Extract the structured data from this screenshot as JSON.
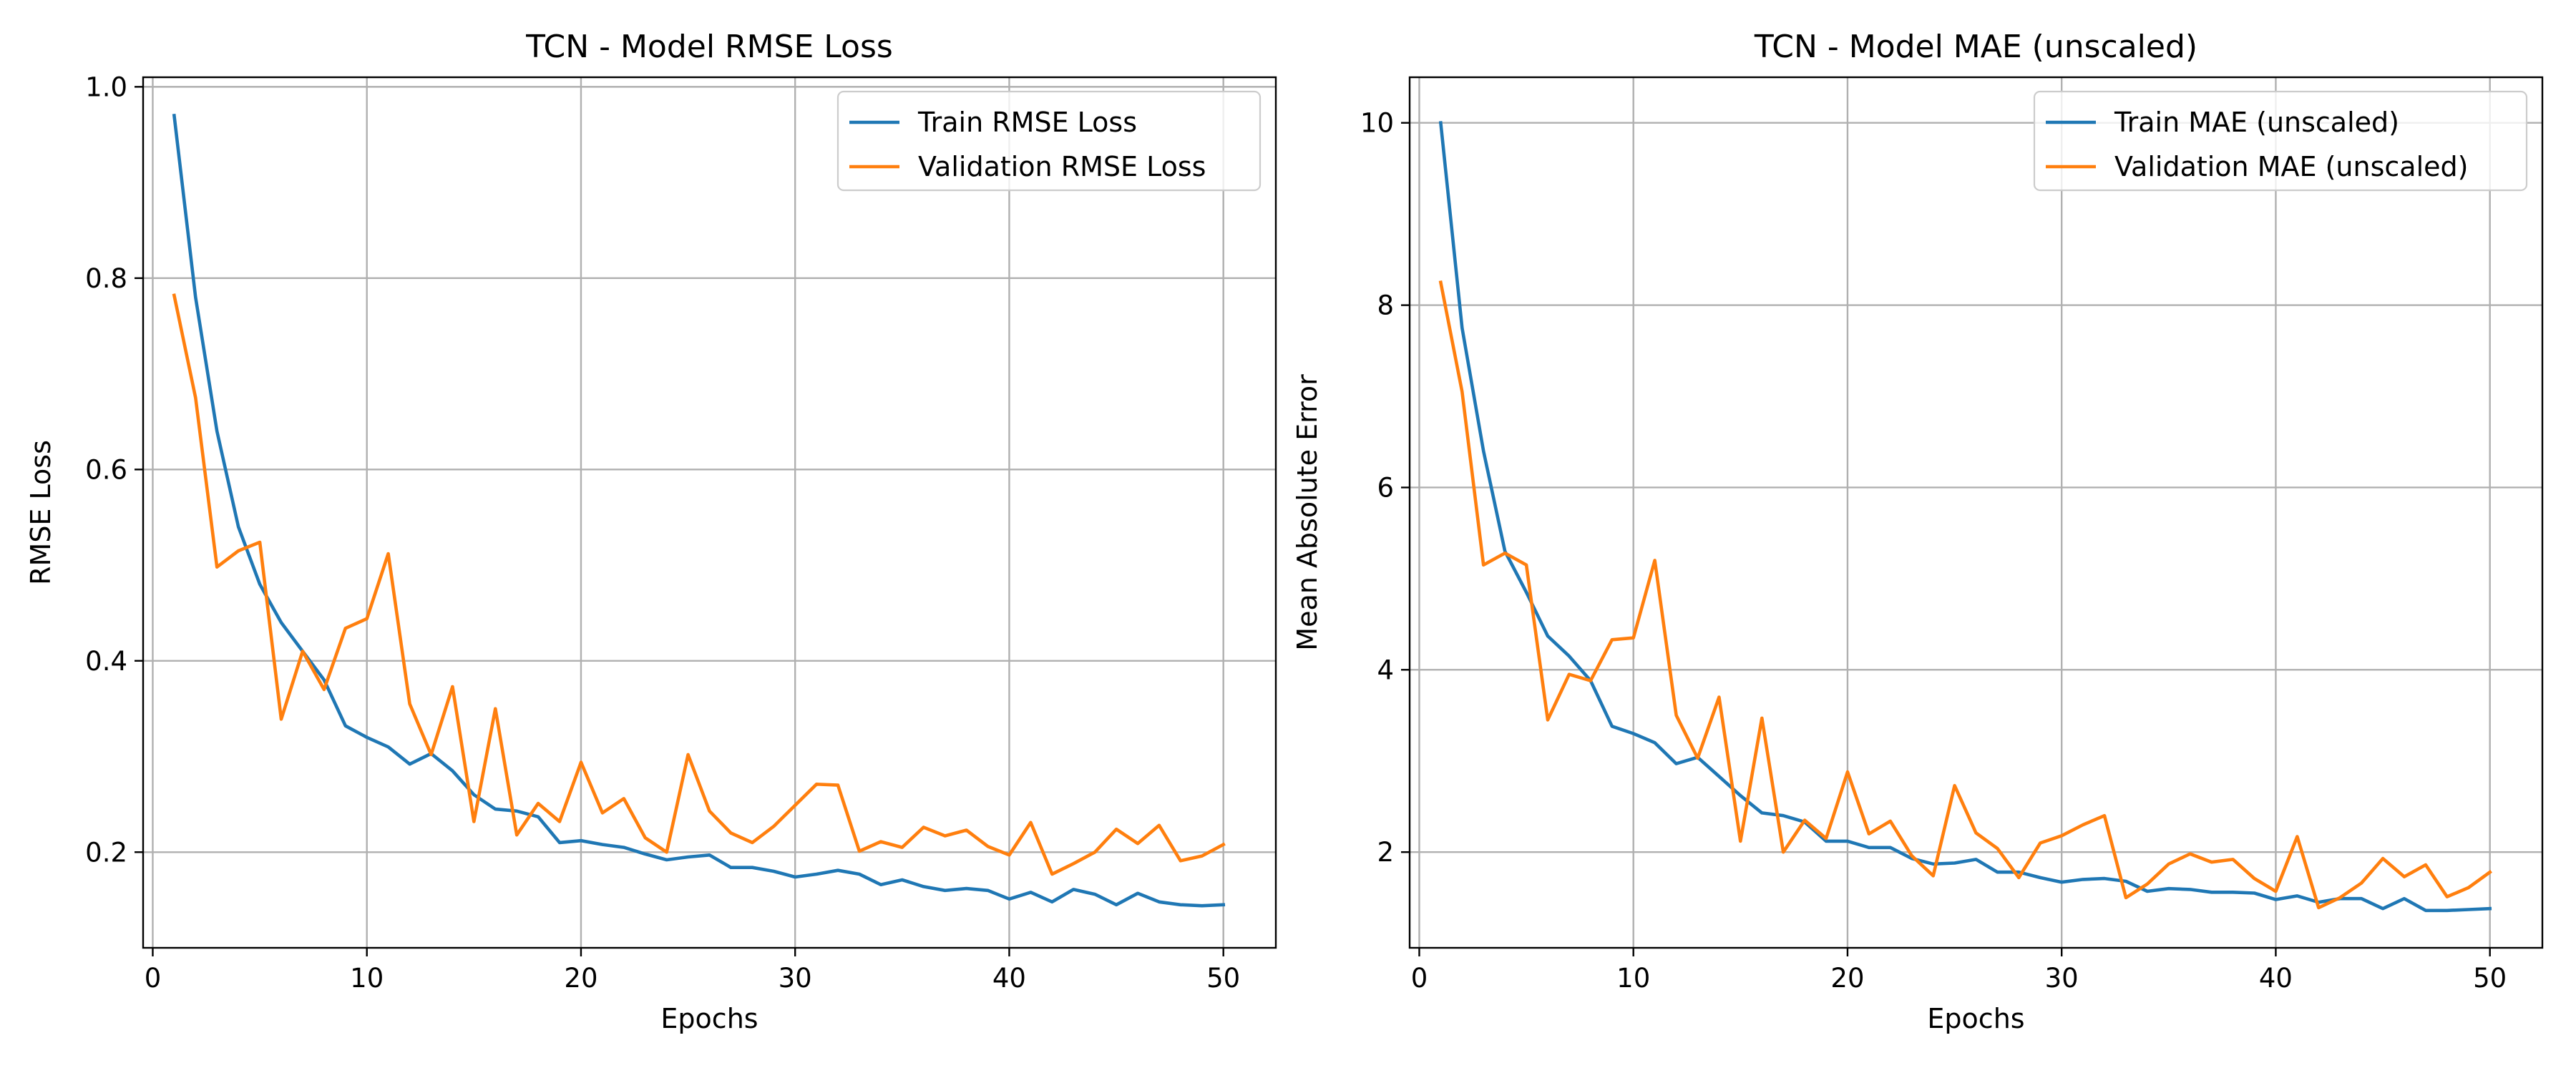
{
  "chart_data": [
    {
      "type": "line",
      "title": "TCN - Model RMSE Loss",
      "xlabel": "Epochs",
      "ylabel": "RMSE Loss",
      "xlim": [
        -0.45,
        52.45
      ],
      "ylim": [
        0.1,
        1.01
      ],
      "xticks": [
        0,
        10,
        20,
        30,
        40,
        50
      ],
      "yticks": [
        0.2,
        0.4,
        0.6,
        0.8,
        1.0
      ],
      "ytick_labels": [
        "0.2",
        "0.4",
        "0.6",
        "0.8",
        "1.0"
      ],
      "grid": true,
      "legend_position": "top-right",
      "x": [
        1,
        2,
        3,
        4,
        5,
        6,
        7,
        8,
        9,
        10,
        11,
        12,
        13,
        14,
        15,
        16,
        17,
        18,
        19,
        20,
        21,
        22,
        23,
        24,
        25,
        26,
        27,
        28,
        29,
        30,
        31,
        32,
        33,
        34,
        35,
        36,
        37,
        38,
        39,
        40,
        41,
        42,
        43,
        44,
        45,
        46,
        47,
        48,
        49,
        50
      ],
      "series": [
        {
          "name": "Train RMSE Loss",
          "color": "#1f77b4",
          "values": [
            0.97,
            0.78,
            0.64,
            0.54,
            0.48,
            0.44,
            0.41,
            0.38,
            0.332,
            0.32,
            0.31,
            0.292,
            0.303,
            0.285,
            0.26,
            0.245,
            0.243,
            0.237,
            0.21,
            0.212,
            0.208,
            0.205,
            0.198,
            0.192,
            0.195,
            0.197,
            0.184,
            0.184,
            0.18,
            0.174,
            0.177,
            0.181,
            0.177,
            0.166,
            0.171,
            0.164,
            0.16,
            0.162,
            0.16,
            0.151,
            0.158,
            0.148,
            0.161,
            0.156,
            0.145,
            0.157,
            0.148,
            0.145,
            0.144,
            0.145
          ]
        },
        {
          "name": "Validation RMSE Loss",
          "color": "#ff7f0e",
          "values": [
            0.782,
            0.675,
            0.498,
            0.515,
            0.524,
            0.339,
            0.41,
            0.37,
            0.434,
            0.444,
            0.512,
            0.355,
            0.302,
            0.373,
            0.232,
            0.35,
            0.218,
            0.251,
            0.232,
            0.294,
            0.241,
            0.256,
            0.215,
            0.2,
            0.302,
            0.243,
            0.22,
            0.21,
            0.227,
            0.249,
            0.271,
            0.27,
            0.201,
            0.211,
            0.205,
            0.226,
            0.217,
            0.223,
            0.206,
            0.197,
            0.231,
            0.177,
            0.188,
            0.2,
            0.224,
            0.209,
            0.228,
            0.191,
            0.196,
            0.208
          ]
        }
      ]
    },
    {
      "type": "line",
      "title": "TCN - Model MAE (unscaled)",
      "xlabel": "Epochs",
      "ylabel": "Mean Absolute Error",
      "xlim": [
        -0.45,
        52.45
      ],
      "ylim": [
        0.95,
        10.5
      ],
      "xticks": [
        0,
        10,
        20,
        30,
        40,
        50
      ],
      "yticks": [
        2,
        4,
        6,
        8,
        10
      ],
      "ytick_labels": [
        "2",
        "4",
        "6",
        "8",
        "10"
      ],
      "grid": true,
      "legend_position": "top-right",
      "x": [
        1,
        2,
        3,
        4,
        5,
        6,
        7,
        8,
        9,
        10,
        11,
        12,
        13,
        14,
        15,
        16,
        17,
        18,
        19,
        20,
        21,
        22,
        23,
        24,
        25,
        26,
        27,
        28,
        29,
        30,
        31,
        32,
        33,
        34,
        35,
        36,
        37,
        38,
        39,
        40,
        41,
        42,
        43,
        44,
        45,
        46,
        47,
        48,
        49,
        50
      ],
      "series": [
        {
          "name": "Train MAE (unscaled)",
          "color": "#1f77b4",
          "values": [
            10.0,
            7.75,
            6.4,
            5.3,
            4.85,
            4.37,
            4.15,
            3.88,
            3.38,
            3.3,
            3.2,
            2.97,
            3.04,
            2.83,
            2.62,
            2.43,
            2.4,
            2.33,
            2.12,
            2.12,
            2.05,
            2.05,
            1.93,
            1.87,
            1.88,
            1.92,
            1.78,
            1.78,
            1.72,
            1.67,
            1.7,
            1.71,
            1.68,
            1.57,
            1.6,
            1.59,
            1.56,
            1.56,
            1.55,
            1.48,
            1.52,
            1.45,
            1.49,
            1.49,
            1.38,
            1.49,
            1.36,
            1.36,
            1.37,
            1.38
          ]
        },
        {
          "name": "Validation MAE (unscaled)",
          "color": "#ff7f0e",
          "values": [
            8.25,
            7.05,
            5.15,
            5.28,
            5.15,
            3.45,
            3.95,
            3.88,
            4.33,
            4.35,
            5.2,
            3.5,
            3.03,
            3.7,
            2.12,
            3.47,
            2.0,
            2.35,
            2.15,
            2.88,
            2.2,
            2.34,
            1.96,
            1.74,
            2.73,
            2.21,
            2.04,
            1.72,
            2.1,
            2.18,
            2.3,
            2.4,
            1.5,
            1.65,
            1.87,
            1.98,
            1.89,
            1.92,
            1.71,
            1.57,
            2.17,
            1.39,
            1.5,
            1.66,
            1.93,
            1.73,
            1.86,
            1.51,
            1.61,
            1.78
          ]
        }
      ]
    }
  ]
}
